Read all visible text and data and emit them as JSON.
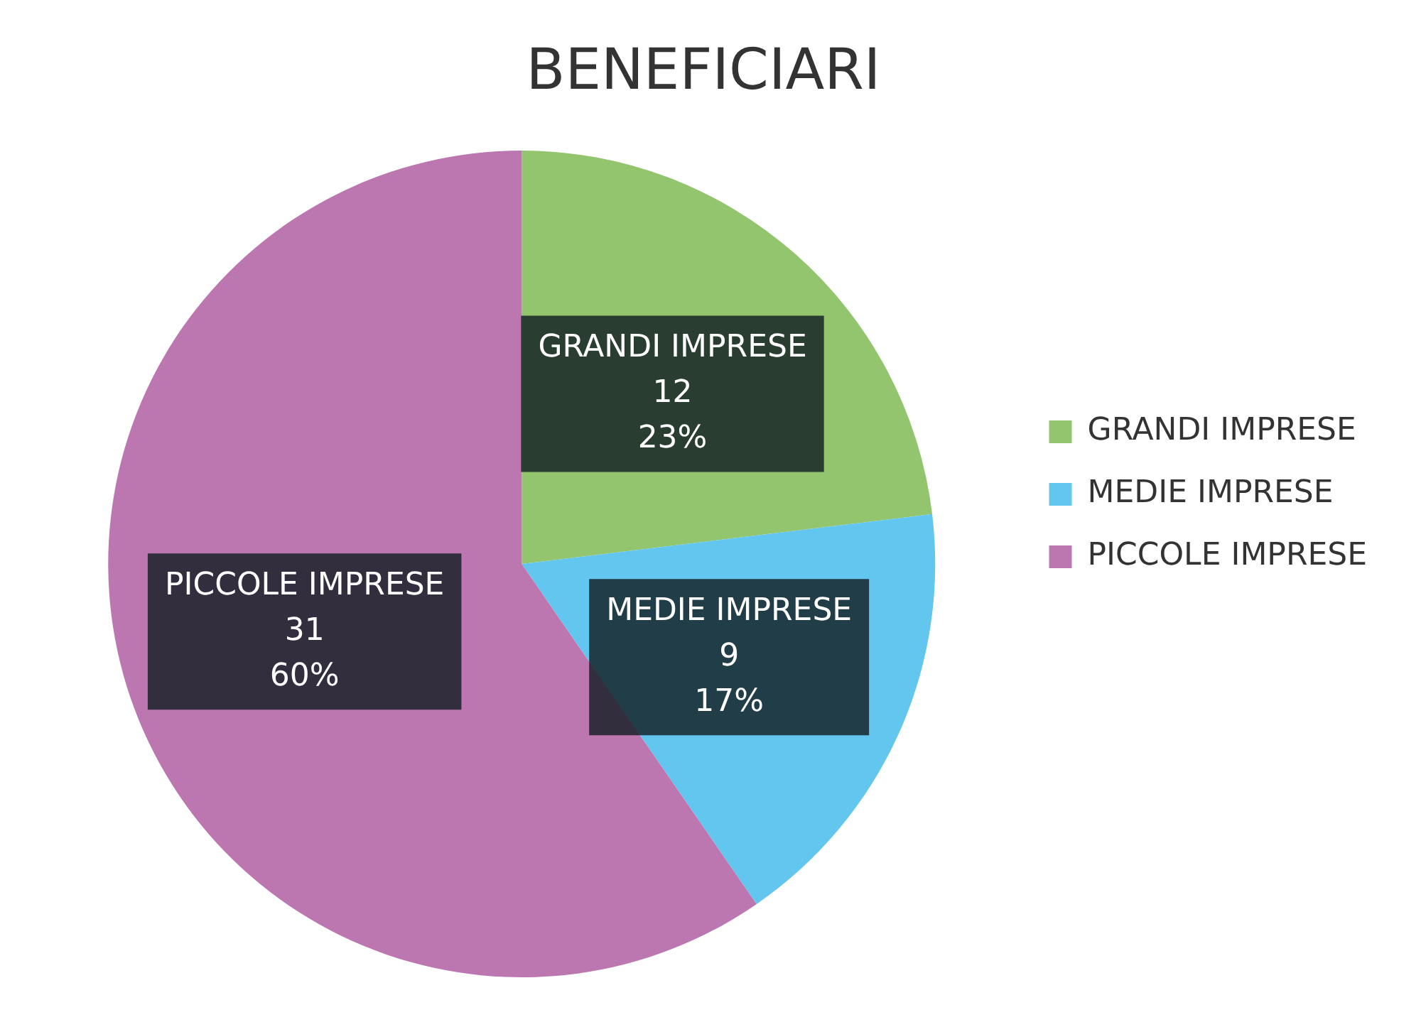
{
  "chart_data": {
    "type": "pie",
    "title": "BENEFICIARI",
    "categories": [
      "GRANDI IMPRESE",
      "MEDIE IMPRESE",
      "PICCOLE IMPRESE"
    ],
    "values": [
      12,
      9,
      31
    ],
    "colors": [
      "#92c56e",
      "#62c6ef",
      "#bc77b0"
    ],
    "value_labels": [
      "12\n23%",
      "9\n17%",
      "31\n60%"
    ],
    "legend": "right"
  }
}
